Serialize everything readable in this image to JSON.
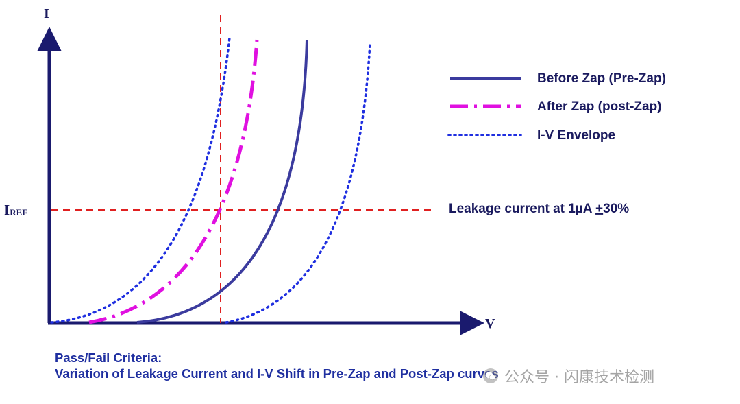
{
  "axes": {
    "y_label": "I",
    "x_label": "V",
    "ref_label_main": "I",
    "ref_label_sub": "REF"
  },
  "legend": {
    "items": [
      {
        "label": "Before Zap (Pre-Zap)",
        "style": "solid",
        "color": "#3b3b9e"
      },
      {
        "label": "After Zap (post-Zap)",
        "style": "dashdot",
        "color": "#e010e0"
      },
      {
        "label": "I-V Envelope",
        "style": "dotted",
        "color": "#1f2fe0"
      }
    ]
  },
  "annotation": {
    "leakage": "Leakage current at 1µA ",
    "pm": "+",
    "pct": "30%"
  },
  "caption": {
    "line1": "Pass/Fail Criteria:",
    "line2": "Variation of Leakage Current and I-V Shift in Pre-Zap and Post-Zap curves"
  },
  "watermark": {
    "text": "公众号 · 闪康技术检测"
  },
  "colors": {
    "axis": "#1a1a6e",
    "ref_lines": "#e02020",
    "pre_zap": "#3b3b9e",
    "post_zap": "#e010e0",
    "envelope": "#1f2fe0"
  }
}
